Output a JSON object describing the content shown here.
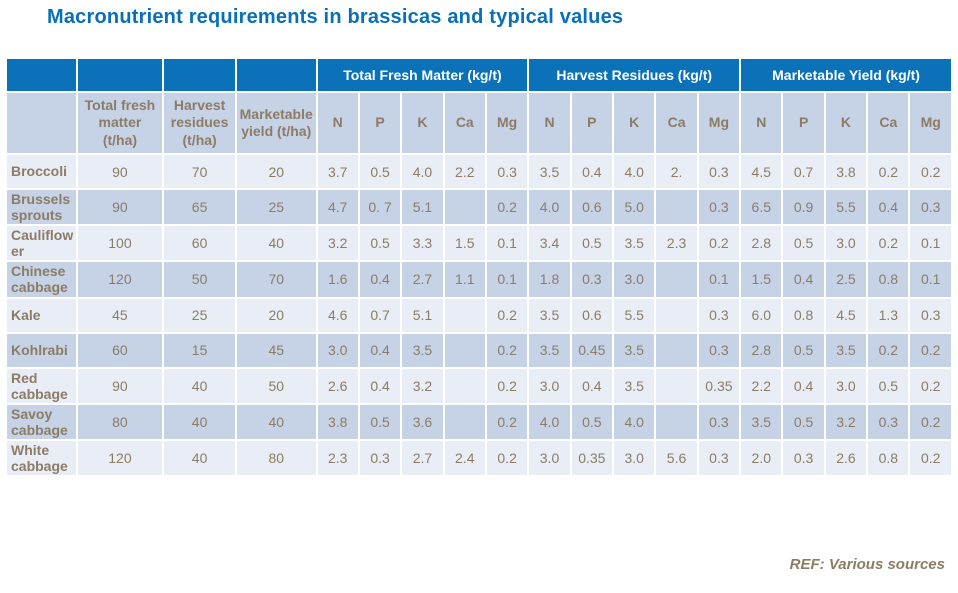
{
  "title": "Macronutrient requirements in brassicas and typical values",
  "footer": {
    "ref": "REF: Various sources"
  },
  "colors": {
    "header_blue": "#0b72ba",
    "title_blue": "#0a6fb9",
    "row_light": "#e9edf6",
    "row_dark": "#c6d2e6",
    "text_brown": "#8c7c66"
  },
  "table": {
    "group_headers": [
      "Total Fresh Matter (kg/t)",
      "Harvest Residues (kg/t)",
      "Marketable Yield (kg/t)"
    ],
    "stat_headers": [
      "Total fresh matter (t/ha)",
      "Harvest residues (t/ha)",
      "Marketable yield (t/ha)"
    ],
    "nutrient_headers": [
      "N",
      "P",
      "K",
      "Ca",
      "Mg"
    ],
    "rows": [
      {
        "label": "Broccoli",
        "values": [
          "90",
          "70",
          "20",
          "3.7",
          "0.5",
          "4.0",
          "2.2",
          "0.3",
          "3.5",
          "0.4",
          "4.0",
          "2.",
          "0.3",
          "4.5",
          "0.7",
          "3.8",
          "0.2",
          "0.2"
        ]
      },
      {
        "label": "Brussels sprouts",
        "values": [
          "90",
          "65",
          "25",
          "4.7",
          "0. 7",
          "5.1",
          "",
          "0.2",
          "4.0",
          "0.6",
          "5.0",
          "",
          "0.3",
          "6.5",
          "0.9",
          "5.5",
          "0.4",
          "0.3"
        ]
      },
      {
        "label": "Cauliflower",
        "values": [
          "100",
          "60",
          "40",
          "3.2",
          "0.5",
          "3.3",
          "1.5",
          "0.1",
          "3.4",
          "0.5",
          "3.5",
          "2.3",
          "0.2",
          "2.8",
          "0.5",
          "3.0",
          "0.2",
          "0.1"
        ]
      },
      {
        "label": "Chinese cabbage",
        "values": [
          "120",
          "50",
          "70",
          "1.6",
          "0.4",
          "2.7",
          "1.1",
          "0.1",
          "1.8",
          "0.3",
          "3.0",
          "",
          "0.1",
          "1.5",
          "0.4",
          "2.5",
          "0.8",
          "0.1"
        ]
      },
      {
        "label": "Kale",
        "values": [
          "45",
          "25",
          "20",
          "4.6",
          "0.7",
          "5.1",
          "",
          "0.2",
          "3.5",
          "0.6",
          "5.5",
          "",
          "0.3",
          "6.0",
          "0.8",
          "4.5",
          "1.3",
          "0.3"
        ]
      },
      {
        "label": "Kohlrabi",
        "values": [
          "60",
          "15",
          "45",
          "3.0",
          "0.4",
          "3.5",
          "",
          "0.2",
          "3.5",
          "0.45",
          "3.5",
          "",
          "0.3",
          "2.8",
          "0.5",
          "3.5",
          "0.2",
          "0.2"
        ]
      },
      {
        "label": "Red cabbage",
        "values": [
          "90",
          "40",
          "50",
          "2.6",
          "0.4",
          "3.2",
          "",
          "0.2",
          "3.0",
          "0.4",
          "3.5",
          "",
          "0.35",
          "2.2",
          "0.4",
          "3.0",
          "0.5",
          "0.2"
        ]
      },
      {
        "label": "Savoy cabbage",
        "values": [
          "80",
          "40",
          "40",
          "3.8",
          "0.5",
          "3.6",
          "",
          "0.2",
          "4.0",
          "0.5",
          "4.0",
          "",
          "0.3",
          "3.5",
          "0.5",
          "3.2",
          "0.3",
          "0.2"
        ]
      },
      {
        "label": "White cabbage",
        "values": [
          "120",
          "40",
          "80",
          "2.3",
          "0.3",
          "2.7",
          "2.4",
          "0.2",
          "3.0",
          "0.35",
          "3.0",
          "5.6",
          "0.3",
          "2.0",
          "0.3",
          "2.6",
          "0.8",
          "0.2"
        ]
      }
    ]
  }
}
